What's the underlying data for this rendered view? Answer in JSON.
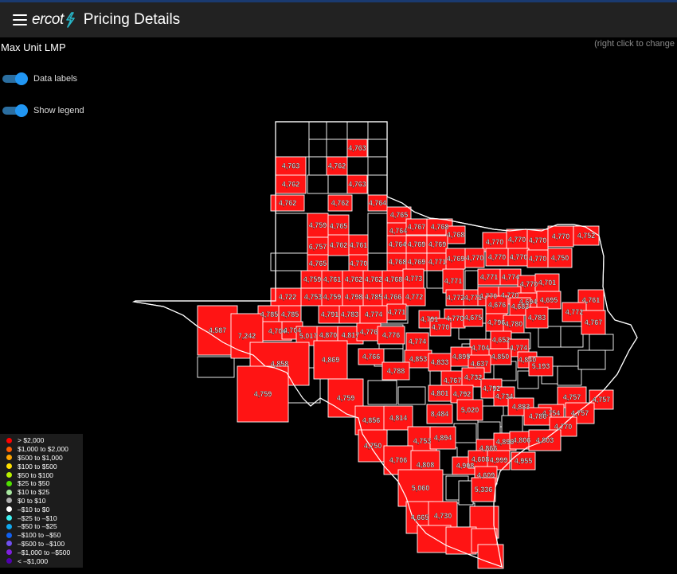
{
  "header": {
    "logo_text": "ercot",
    "title": "Pricing Details"
  },
  "map": {
    "title": "Max Unit LMP",
    "hint": "(right click to change",
    "toggles": [
      {
        "label": "Data labels",
        "on": true
      },
      {
        "label": "Show legend",
        "on": true
      }
    ],
    "colors": {
      "county_priced": "#ff1414",
      "county_unpriced": "#000000",
      "border": "#ffffff"
    }
  },
  "county_labels": [
    "4,763",
    "4,762",
    "4,763",
    "4,762",
    "4,763",
    "4,762",
    "4,762",
    "4,764",
    "4,765",
    "4,764",
    "4,767",
    "4,768",
    "4,768",
    "4,759",
    "4,765",
    "6,757",
    "4,762",
    "4,761",
    "4,764",
    "4,769",
    "4,769",
    "4,770",
    "4,770",
    "4,770",
    "4,770",
    "4,752",
    "4,765",
    "4,770",
    "4,768",
    "4,769",
    "4,771",
    "4,769",
    "4,770",
    "4,770",
    "4,770",
    "4,770",
    "4,750",
    "4,759",
    "4,761",
    "4,762",
    "4,762",
    "4,768",
    "4,773",
    "4,771",
    "4,771",
    "4,774",
    "4,770",
    "4,701",
    "4,722",
    "4,753",
    "4,759",
    "4,798",
    "4,785",
    "4,766",
    "4,772",
    "4,772",
    "4,771",
    "4,770",
    "4,770",
    "4,694",
    "4,695",
    "4,761",
    "4,785",
    "4,785",
    "4,791",
    "4,783",
    "4,774",
    "4,771",
    "4,791",
    "4,770",
    "4,675",
    "4,676",
    "4,683",
    "4,587",
    "7,242",
    "4,704",
    "4,704",
    "5,017",
    "4,870",
    "4,817",
    "4,776",
    "4,776",
    "4,770",
    "4,796",
    "4,780",
    "4,783",
    "4,772",
    "4,767",
    "4,774",
    "4,652",
    "4,704",
    "4,774",
    "4,840",
    "4,850",
    "4,858",
    "4,869",
    "4,766",
    "4,853",
    "4,833",
    "4,895",
    "4,637",
    "5,193",
    "4,788",
    "4,767",
    "4,732",
    "4,759",
    "4,759",
    "4,792",
    "4,792",
    "4,734",
    "4,757",
    "4,757",
    "4,801",
    "5,020",
    "4,883",
    "4,754",
    "4,757",
    "8,484",
    "4,856",
    "4,814",
    "4,786",
    "4,770",
    "4,750",
    "4,753",
    "4,894",
    "4,866",
    "4,896",
    "4,806",
    "4,803",
    "4,706",
    "4,808",
    "4,908",
    "4,608",
    "4,999",
    "4,955",
    "4,609",
    "5,060",
    "5,336",
    "4,665",
    "4,730"
  ],
  "legend": {
    "items": [
      {
        "label": "> $2,000",
        "color": "#ff0000"
      },
      {
        "label": "$1,000 to $2,000",
        "color": "#ff5a00"
      },
      {
        "label": "$500 to $1,000",
        "color": "#ffa500"
      },
      {
        "label": "$100 to $500",
        "color": "#ffe000"
      },
      {
        "label": "$50 to $100",
        "color": "#b8f000"
      },
      {
        "label": "$25 to $50",
        "color": "#50e000"
      },
      {
        "label": "$10 to $25",
        "color": "#a8e8a0"
      },
      {
        "label": "$0 to $10",
        "color": "#b0b0b0"
      },
      {
        "label": "–$10 to $0",
        "color": "#ffffff"
      },
      {
        "label": "–$25 to –$10",
        "color": "#40f0f0"
      },
      {
        "label": "–$50 to –$25",
        "color": "#10a8f0"
      },
      {
        "label": "–$100 to –$50",
        "color": "#1060f0"
      },
      {
        "label": "–$500 to –$100",
        "color": "#7050f0"
      },
      {
        "label": "–$1,000 to –$500",
        "color": "#8020e0"
      },
      {
        "label": "< –$1,000",
        "color": "#5000b0"
      }
    ]
  }
}
